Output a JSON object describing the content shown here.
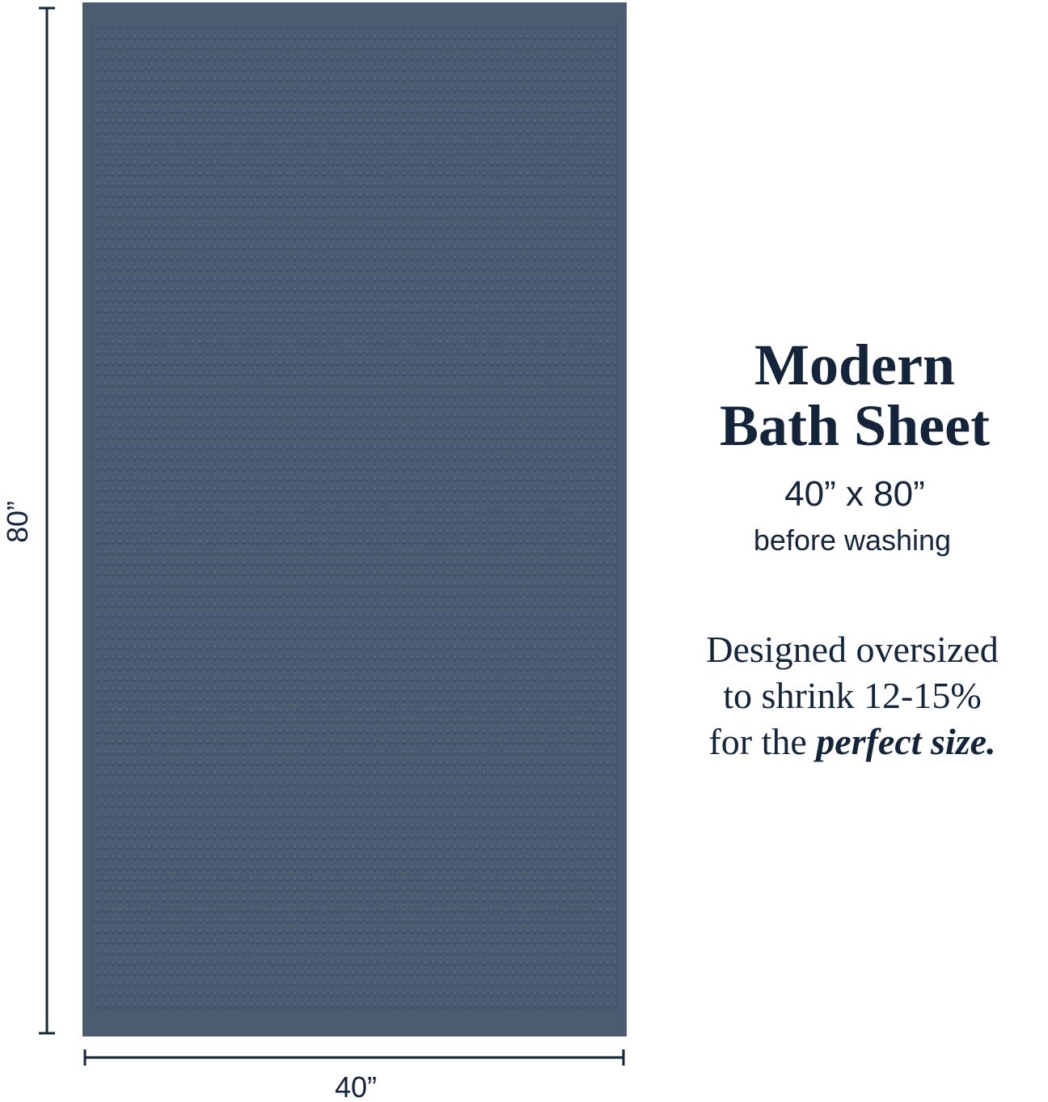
{
  "dimensions": {
    "height_label": "80”",
    "width_label": "40”"
  },
  "heading": {
    "line1": "Modern",
    "line2": "Bath Sheet"
  },
  "size": {
    "measure": "40” x 80”",
    "note": "before washing"
  },
  "description": {
    "line1": "Designed oversized",
    "line2": "to shrink 12-15%",
    "line3_prefix": "for the ",
    "line3_emphasis": "perfect size."
  }
}
